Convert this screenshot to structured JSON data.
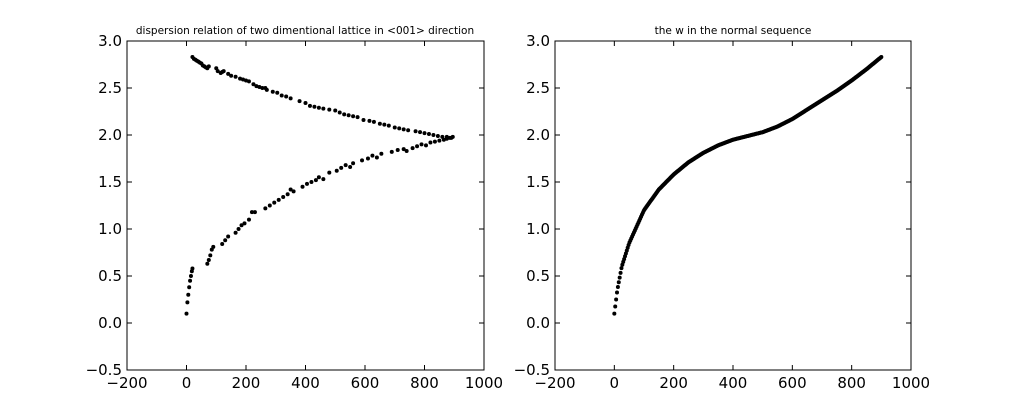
{
  "chart_data": [
    {
      "type": "scatter",
      "title": "dispersion relation of two dimentional lattice in <001> direction",
      "xlabel": "",
      "ylabel": "",
      "xlim": [
        -200,
        1000
      ],
      "ylim": [
        -0.5,
        3.0
      ],
      "xticks": [
        -200,
        0,
        200,
        400,
        600,
        800,
        1000
      ],
      "yticks": [
        -0.5,
        0.0,
        0.5,
        1.0,
        1.5,
        2.0,
        2.5,
        3.0
      ],
      "xtick_labels": [
        "−200",
        "0",
        "200",
        "400",
        "600",
        "800",
        "1000"
      ],
      "ytick_labels": [
        "−0.5",
        "0.0",
        "0.5",
        "1.0",
        "1.5",
        "2.0",
        "2.5",
        "3.0"
      ],
      "grid": false,
      "marker_color": "#000000",
      "series": [
        {
          "branch": "lower",
          "points": [
            [
              0,
              0.1
            ],
            [
              3,
              0.22
            ],
            [
              6,
              0.3
            ],
            [
              9,
              0.38
            ],
            [
              12,
              0.45
            ],
            [
              15,
              0.5
            ],
            [
              18,
              0.55
            ],
            [
              20,
              0.58
            ],
            [
              70,
              0.63
            ],
            [
              75,
              0.67
            ],
            [
              80,
              0.72
            ],
            [
              85,
              0.78
            ],
            [
              90,
              0.81
            ],
            [
              120,
              0.84
            ],
            [
              130,
              0.88
            ],
            [
              140,
              0.92
            ],
            [
              165,
              0.96
            ],
            [
              175,
              1.0
            ],
            [
              185,
              1.04
            ],
            [
              195,
              1.06
            ],
            [
              210,
              1.1
            ],
            [
              220,
              1.18
            ],
            [
              230,
              1.18
            ],
            [
              265,
              1.22
            ],
            [
              280,
              1.25
            ],
            [
              295,
              1.28
            ],
            [
              310,
              1.31
            ],
            [
              325,
              1.34
            ],
            [
              340,
              1.37
            ],
            [
              350,
              1.42
            ],
            [
              360,
              1.4
            ],
            [
              390,
              1.45
            ],
            [
              405,
              1.48
            ],
            [
              420,
              1.5
            ],
            [
              435,
              1.52
            ],
            [
              445,
              1.55
            ],
            [
              460,
              1.53
            ],
            [
              480,
              1.6
            ],
            [
              505,
              1.62
            ],
            [
              520,
              1.65
            ],
            [
              535,
              1.68
            ],
            [
              550,
              1.66
            ],
            [
              560,
              1.7
            ],
            [
              590,
              1.73
            ],
            [
              610,
              1.75
            ],
            [
              625,
              1.78
            ],
            [
              640,
              1.76
            ],
            [
              655,
              1.8
            ],
            [
              690,
              1.82
            ],
            [
              710,
              1.84
            ],
            [
              730,
              1.85
            ],
            [
              740,
              1.83
            ],
            [
              760,
              1.86
            ],
            [
              775,
              1.88
            ],
            [
              790,
              1.9
            ],
            [
              805,
              1.89
            ],
            [
              820,
              1.92
            ],
            [
              835,
              1.93
            ],
            [
              850,
              1.94
            ],
            [
              865,
              1.95
            ],
            [
              875,
              1.96
            ],
            [
              885,
              1.97
            ],
            [
              895,
              1.98
            ]
          ]
        },
        {
          "branch": "upper",
          "points": [
            [
              20,
              2.83
            ],
            [
              25,
              2.81
            ],
            [
              30,
              2.8
            ],
            [
              35,
              2.79
            ],
            [
              40,
              2.78
            ],
            [
              45,
              2.77
            ],
            [
              50,
              2.76
            ],
            [
              55,
              2.74
            ],
            [
              60,
              2.73
            ],
            [
              65,
              2.72
            ],
            [
              70,
              2.71
            ],
            [
              75,
              2.73
            ],
            [
              100,
              2.71
            ],
            [
              105,
              2.68
            ],
            [
              115,
              2.66
            ],
            [
              120,
              2.67
            ],
            [
              125,
              2.68
            ],
            [
              140,
              2.65
            ],
            [
              150,
              2.63
            ],
            [
              165,
              2.62
            ],
            [
              180,
              2.6
            ],
            [
              190,
              2.59
            ],
            [
              200,
              2.58
            ],
            [
              210,
              2.57
            ],
            [
              225,
              2.54
            ],
            [
              235,
              2.52
            ],
            [
              245,
              2.51
            ],
            [
              255,
              2.5
            ],
            [
              265,
              2.5
            ],
            [
              270,
              2.48
            ],
            [
              290,
              2.46
            ],
            [
              305,
              2.45
            ],
            [
              320,
              2.42
            ],
            [
              335,
              2.41
            ],
            [
              350,
              2.39
            ],
            [
              380,
              2.36
            ],
            [
              400,
              2.34
            ],
            [
              415,
              2.31
            ],
            [
              430,
              2.3
            ],
            [
              445,
              2.29
            ],
            [
              460,
              2.28
            ],
            [
              480,
              2.27
            ],
            [
              500,
              2.26
            ],
            [
              515,
              2.24
            ],
            [
              530,
              2.22
            ],
            [
              545,
              2.21
            ],
            [
              560,
              2.2
            ],
            [
              575,
              2.19
            ],
            [
              595,
              2.16
            ],
            [
              615,
              2.15
            ],
            [
              630,
              2.14
            ],
            [
              650,
              2.12
            ],
            [
              665,
              2.11
            ],
            [
              680,
              2.1
            ],
            [
              700,
              2.08
            ],
            [
              715,
              2.07
            ],
            [
              730,
              2.06
            ],
            [
              745,
              2.05
            ],
            [
              770,
              2.04
            ],
            [
              785,
              2.03
            ],
            [
              800,
              2.02
            ],
            [
              815,
              2.01
            ],
            [
              830,
              2.0
            ],
            [
              845,
              1.99
            ],
            [
              860,
              1.98
            ],
            [
              875,
              1.98
            ],
            [
              890,
              1.97
            ]
          ]
        }
      ]
    },
    {
      "type": "scatter",
      "title": "the w in the normal sequence",
      "xlabel": "",
      "ylabel": "",
      "xlim": [
        -200,
        1000
      ],
      "ylim": [
        -0.5,
        3.0
      ],
      "xticks": [
        -200,
        0,
        200,
        400,
        600,
        800,
        1000
      ],
      "yticks": [
        -0.5,
        0.0,
        0.5,
        1.0,
        1.5,
        2.0,
        2.5,
        3.0
      ],
      "xtick_labels": [
        "−200",
        "0",
        "200",
        "400",
        "600",
        "800",
        "1000"
      ],
      "ytick_labels": [
        "−0.5",
        "0.0",
        "0.5",
        "1.0",
        "1.5",
        "2.0",
        "2.5",
        "3.0"
      ],
      "grid": false,
      "marker_color": "#000000",
      "curve": {
        "x_range": [
          0,
          900
        ],
        "points": [
          [
            0,
            0.1
          ],
          [
            10,
            0.35
          ],
          [
            25,
            0.6
          ],
          [
            50,
            0.85
          ],
          [
            100,
            1.2
          ],
          [
            150,
            1.42
          ],
          [
            200,
            1.58
          ],
          [
            250,
            1.71
          ],
          [
            300,
            1.81
          ],
          [
            350,
            1.89
          ],
          [
            400,
            1.95
          ],
          [
            450,
            1.99
          ],
          [
            500,
            2.03
          ],
          [
            550,
            2.09
          ],
          [
            600,
            2.17
          ],
          [
            650,
            2.27
          ],
          [
            700,
            2.37
          ],
          [
            750,
            2.47
          ],
          [
            800,
            2.58
          ],
          [
            850,
            2.7
          ],
          [
            900,
            2.83
          ]
        ]
      }
    }
  ]
}
